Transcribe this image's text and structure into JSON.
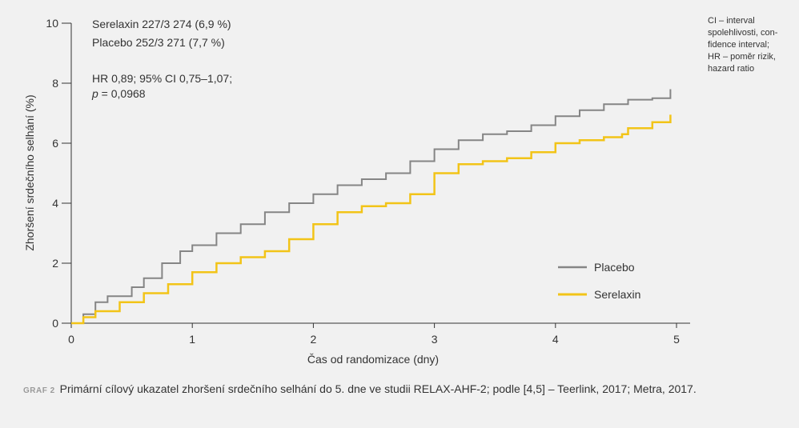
{
  "chart_data": {
    "type": "line",
    "ylabel": "Zhoršení srdečního selhání (%)",
    "xlabel": "Čas od randomizace (dny)",
    "xlim": [
      0,
      5
    ],
    "ylim": [
      0,
      10
    ],
    "x_ticks": [
      "0",
      "1",
      "2",
      "3",
      "4",
      "5"
    ],
    "y_ticks": [
      "0",
      "2",
      "4",
      "6",
      "8",
      "10"
    ],
    "legend_position": "bottom-right",
    "annotations": {
      "line1": "Serelaxin 227/3 274 (6,9 %)",
      "line2": "Placebo 252/3 271 (7,7 %)",
      "line3": "HR 0,89; 95% CI 0,75–1,07;",
      "line4_italic": "p",
      "line4_rest": " = 0,0968"
    },
    "series": [
      {
        "name": "Placebo",
        "color": "#858585",
        "x": [
          0,
          0.1,
          0.2,
          0.3,
          0.5,
          0.6,
          0.75,
          0.9,
          1.0,
          1.2,
          1.4,
          1.6,
          1.8,
          2.0,
          2.2,
          2.4,
          2.6,
          2.8,
          3.0,
          3.2,
          3.4,
          3.6,
          3.8,
          4.0,
          4.2,
          4.4,
          4.6,
          4.8,
          4.95
        ],
        "y": [
          0,
          0.3,
          0.7,
          0.9,
          1.2,
          1.5,
          2.0,
          2.4,
          2.6,
          3.0,
          3.3,
          3.7,
          4.0,
          4.3,
          4.6,
          4.8,
          5.0,
          5.4,
          5.8,
          6.1,
          6.3,
          6.4,
          6.6,
          6.9,
          7.1,
          7.3,
          7.45,
          7.5,
          7.8
        ]
      },
      {
        "name": "Serelaxin",
        "color": "#f2c418",
        "x": [
          0,
          0.1,
          0.2,
          0.4,
          0.6,
          0.8,
          1.0,
          1.2,
          1.4,
          1.6,
          1.8,
          2.0,
          2.2,
          2.4,
          2.6,
          2.8,
          3.0,
          3.2,
          3.4,
          3.6,
          3.8,
          4.0,
          4.2,
          4.4,
          4.55,
          4.6,
          4.8,
          4.95
        ],
        "y": [
          0,
          0.2,
          0.4,
          0.7,
          1.0,
          1.3,
          1.7,
          2.0,
          2.2,
          2.4,
          2.8,
          3.3,
          3.7,
          3.9,
          4.0,
          4.3,
          5.0,
          5.3,
          5.4,
          5.5,
          5.7,
          6.0,
          6.1,
          6.2,
          6.3,
          6.5,
          6.7,
          6.95
        ]
      }
    ]
  },
  "side_note": {
    "line1": "CI – interval",
    "line2": "spolehlivosti, con-",
    "line3": "fidence interval;",
    "line4": "HR – poměr rizik,",
    "line5": "hazard ratio"
  },
  "caption": {
    "label": "GRAF 2",
    "text": "Primární cílový ukazatel zhoršení srdečního selhání do 5. dne ve studii RELAX-AHF-2; podle [4,5] – Teerlink, 2017; Metra, 2017."
  }
}
